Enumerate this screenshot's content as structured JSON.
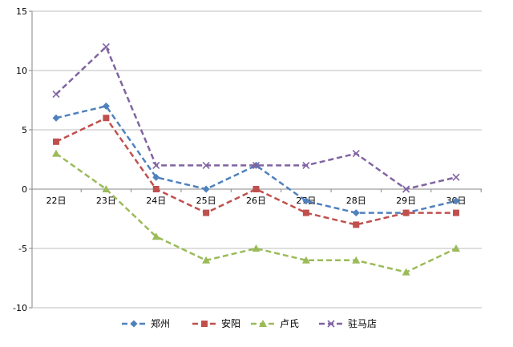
{
  "chart_data": {
    "type": "line",
    "title": "",
    "xlabel": "",
    "ylabel": "",
    "categories": [
      "22日",
      "23日",
      "24日",
      "25日",
      "26日",
      "27日",
      "28日",
      "29日",
      "30日"
    ],
    "ylim": [
      -10,
      15
    ],
    "yticks": [
      "15",
      "10",
      "5",
      "0",
      "-5",
      "-10"
    ],
    "grid": true,
    "legend_position": "bottom",
    "series": [
      {
        "name": "郑州",
        "values": [
          6,
          7,
          1,
          0,
          2,
          -1,
          -2,
          -2,
          -1
        ],
        "color": "#4F81BD",
        "marker": "diamond"
      },
      {
        "name": "安阳",
        "values": [
          4,
          6,
          0,
          -2,
          0,
          -2,
          -3,
          -2,
          -2
        ],
        "color": "#C0504D",
        "marker": "square"
      },
      {
        "name": "卢氏",
        "values": [
          3,
          0,
          -4,
          -6,
          -5,
          -6,
          -6,
          -7,
          -5
        ],
        "color": "#9BBB59",
        "marker": "triangle"
      },
      {
        "name": "驻马店",
        "values": [
          8,
          12,
          2,
          2,
          2,
          2,
          3,
          0,
          1
        ],
        "color": "#8064A2",
        "marker": "x"
      }
    ]
  }
}
